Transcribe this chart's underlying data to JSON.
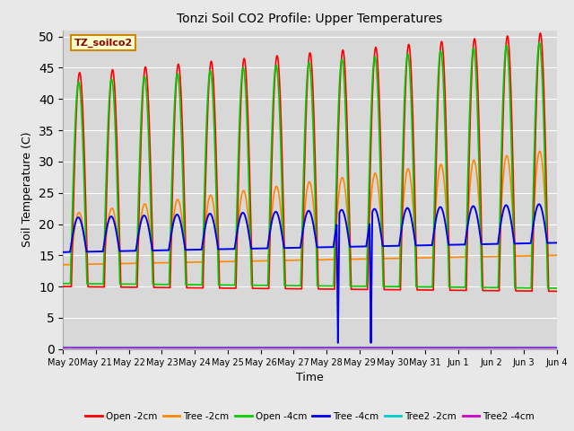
{
  "title": "Tonzi Soil CO2 Profile: Upper Temperatures",
  "ylabel": "Soil Temperature (C)",
  "xlabel": "Time",
  "legend_label": "TZ_soilco2",
  "ylim": [
    0,
    51
  ],
  "yticks": [
    0,
    5,
    10,
    15,
    20,
    25,
    30,
    35,
    40,
    45,
    50
  ],
  "fig_bg": "#e8e8e8",
  "axes_bg": "#d8d8d8",
  "grid_color": "#ffffff",
  "series": [
    {
      "label": "Open -2cm",
      "color": "#ff0000",
      "lw": 1.2
    },
    {
      "label": "Tree -2cm",
      "color": "#ff8800",
      "lw": 1.2
    },
    {
      "label": "Open -4cm",
      "color": "#00cc00",
      "lw": 1.2
    },
    {
      "label": "Tree -4cm",
      "color": "#0000ee",
      "lw": 1.4
    },
    {
      "label": "Tree2 -2cm",
      "color": "#00cccc",
      "lw": 1.2
    },
    {
      "label": "Tree2 -4cm",
      "color": "#cc00cc",
      "lw": 1.2
    }
  ],
  "n_days": 15,
  "spd": 480,
  "x_tick_days": [
    0,
    1,
    2,
    3,
    4,
    5,
    6,
    7,
    8,
    9,
    10,
    11,
    12,
    13,
    14,
    15
  ],
  "x_tick_labels": [
    "May 20",
    "May 21",
    "May 22",
    "May 23",
    "May 24",
    "May 25",
    "May 26",
    "May 27",
    "May 28",
    "May 29",
    "May 30",
    "May 31",
    "Jun 1",
    "Jun 2",
    "Jun 3",
    "Jun 4"
  ],
  "spike_days": [
    8.35,
    9.35
  ]
}
